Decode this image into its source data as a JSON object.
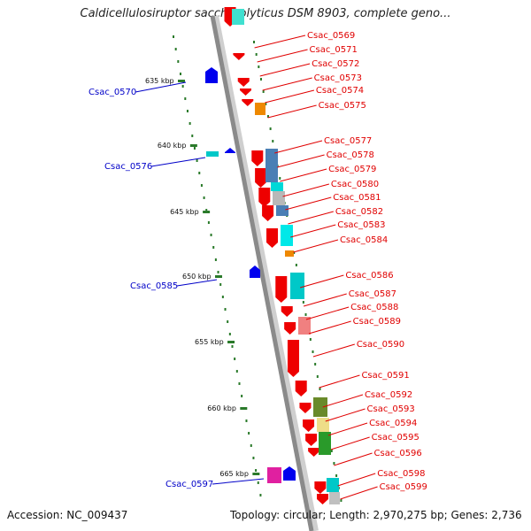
{
  "title": "Caldicellulosiruptor saccharolyticus DSM 8903, complete geno...",
  "accession_text": "Accession: NC_009437",
  "topology_text": "Topology: circular; Length: 2,970,275 bp; Genes: 2,736",
  "colors": {
    "forward": "#ee0000",
    "reverse": "#0000ee",
    "backbone": "#8a8a8a",
    "ticks": "#2a7a2a",
    "label_right": "#e00000",
    "label_left": "#0000c8"
  },
  "kbp_labels": [
    "635 kbp",
    "640 kbp",
    "645 kbp",
    "650 kbp",
    "655 kbp",
    "660 kbp",
    "665 kbp"
  ],
  "genes_right": [
    "Csac_0569",
    "Csac_0571",
    "Csac_0572",
    "Csac_0573",
    "Csac_0574",
    "Csac_0575",
    "Csac_0577",
    "Csac_0578",
    "Csac_0579",
    "Csac_0580",
    "Csac_0581",
    "Csac_0582",
    "Csac_0583",
    "Csac_0584",
    "Csac_0586",
    "Csac_0587",
    "Csac_0588",
    "Csac_0589",
    "Csac_0590",
    "Csac_0591",
    "Csac_0592",
    "Csac_0593",
    "Csac_0594",
    "Csac_0595",
    "Csac_0596",
    "Csac_0598",
    "Csac_0599"
  ],
  "genes_left": [
    "Csac_0570",
    "Csac_0576",
    "Csac_0585",
    "Csac_0597"
  ]
}
